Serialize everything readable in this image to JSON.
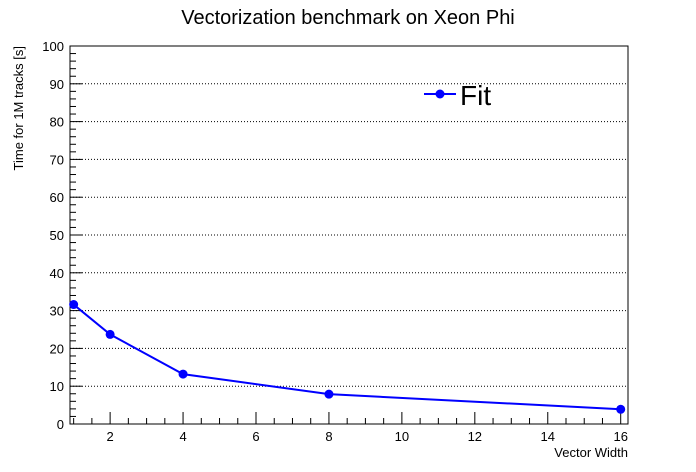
{
  "chart_data": {
    "type": "line",
    "title": "Vectorization benchmark on Xeon Phi",
    "xlabel": "Vector Width",
    "ylabel": "Time for 1M tracks [s]",
    "xlim": [
      0.9,
      16.2
    ],
    "ylim": [
      0,
      100
    ],
    "x_ticks": [
      2,
      4,
      6,
      8,
      10,
      12,
      14,
      16
    ],
    "y_ticks": [
      0,
      10,
      20,
      30,
      40,
      50,
      60,
      70,
      80,
      90,
      100
    ],
    "grid": "horizontal-dotted",
    "legend_position": "top-right",
    "series": [
      {
        "name": "Fit",
        "color": "#0000ff",
        "x": [
          1,
          2,
          4,
          8,
          16
        ],
        "y": [
          31.6,
          23.7,
          13.2,
          7.9,
          3.9
        ]
      }
    ]
  }
}
